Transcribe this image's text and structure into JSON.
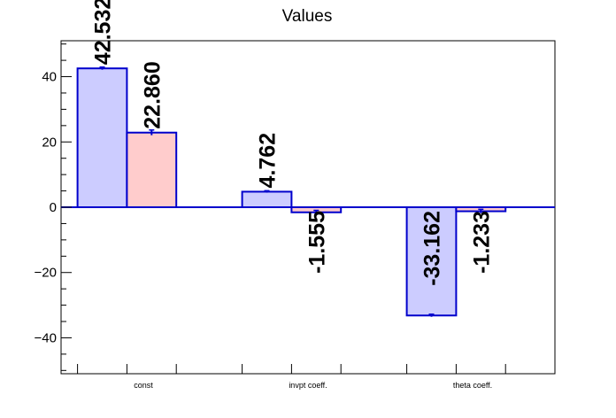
{
  "chart_data": {
    "type": "bar",
    "title": "Values",
    "categories": [
      "const",
      "invpt coeff.",
      "theta coeff."
    ],
    "series": [
      {
        "values": [
          42.532,
          4.762,
          -33.162
        ],
        "labels": [
          "42.532",
          "4.762",
          "-33.162"
        ],
        "errors": [
          0.4,
          0.3,
          0.4
        ],
        "fill": "#ccccff",
        "stroke": "#0000cc"
      },
      {
        "values": [
          22.86,
          -1.555,
          -1.233
        ],
        "labels": [
          "22.860",
          "-1.555",
          "-1.233"
        ],
        "errors": [
          0.8,
          0.6,
          0.6
        ],
        "fill": "#ffcccc",
        "stroke": "#0000cc"
      }
    ],
    "ylim": [
      -51,
      51
    ],
    "yticks": [
      -40,
      -20,
      0,
      20,
      40
    ],
    "yticks_labels": [
      "−40",
      "−20",
      "0",
      "20",
      "40"
    ],
    "xlabel": "",
    "ylabel": "",
    "grid": false
  }
}
